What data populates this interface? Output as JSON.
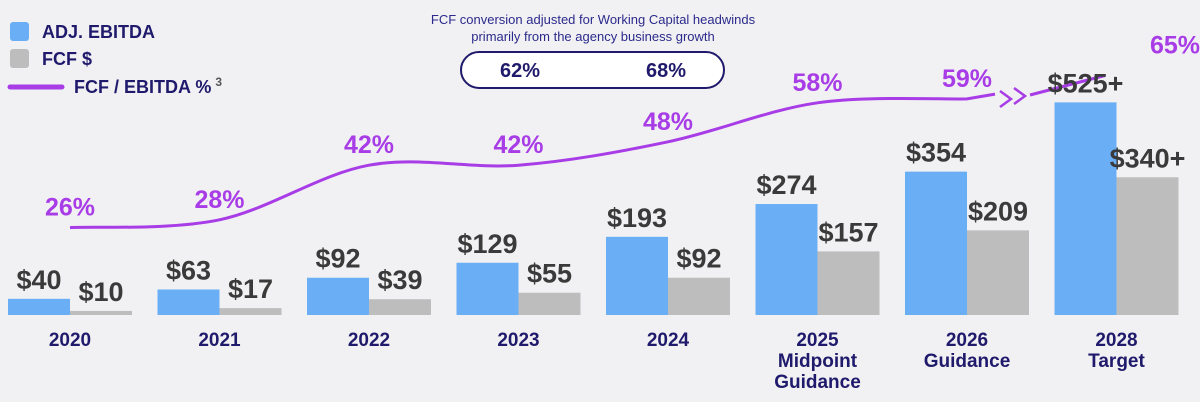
{
  "chart_data": {
    "type": "bar",
    "categories": [
      [
        "2020"
      ],
      [
        "2021"
      ],
      [
        "2022"
      ],
      [
        "2023"
      ],
      [
        "2024"
      ],
      [
        "2025",
        "Midpoint",
        "Guidance"
      ],
      [
        "2026",
        "Guidance"
      ],
      [
        "2028",
        "Target"
      ]
    ],
    "series": [
      {
        "name": "ADJ. EBITDA",
        "color": "#6aaef5",
        "values": [
          40,
          63,
          92,
          129,
          193,
          274,
          354,
          525
        ],
        "labels": [
          "$40",
          "$63",
          "$92",
          "$129",
          "$193",
          "$274",
          "$354",
          "$525+"
        ]
      },
      {
        "name": "FCF $",
        "color": "#bdbdbd",
        "values": [
          10,
          17,
          39,
          55,
          92,
          157,
          209,
          340
        ],
        "labels": [
          "$10",
          "$17",
          "$39",
          "$55",
          "$92",
          "$157",
          "$209",
          "$340+"
        ]
      }
    ],
    "line_series": {
      "name": "FCF / EBITDA %",
      "superscript": "3",
      "color": "#a83ce6",
      "values": [
        26,
        28,
        42,
        42,
        48,
        58,
        59,
        65
      ],
      "labels": [
        "26%",
        "28%",
        "42%",
        "42%",
        "48%",
        "58%",
        "59%",
        "65%"
      ]
    },
    "legend_position": "top-left",
    "annotation": {
      "lines": [
        "FCF conversion adjusted for Working Capital headwinds",
        "primarily from the agency business growth"
      ],
      "values": [
        "62%",
        "68%"
      ]
    }
  }
}
